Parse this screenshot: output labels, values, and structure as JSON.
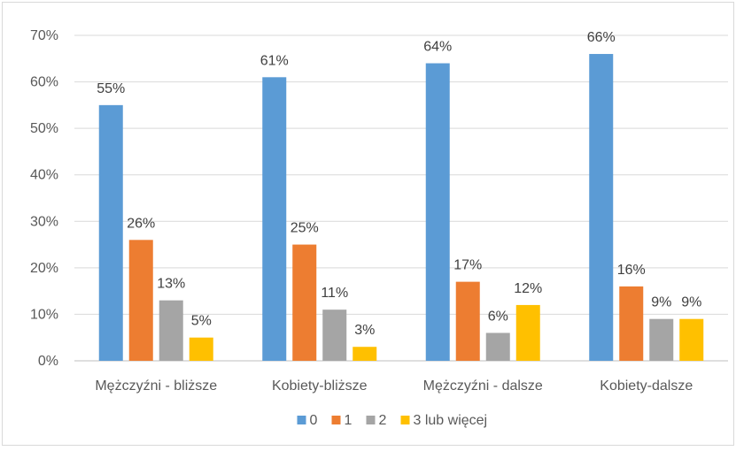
{
  "chart_data": {
    "type": "bar",
    "categories": [
      "Mężczyźni - bliższe",
      "Kobiety-bliższe",
      "Mężczyźni - dalsze",
      "Kobiety-dalsze"
    ],
    "series": [
      {
        "name": "0",
        "values": [
          55,
          61,
          64,
          66
        ],
        "labels": [
          "55%",
          "61%",
          "64%",
          "66%"
        ],
        "color": "#5b9bd5"
      },
      {
        "name": "1",
        "values": [
          26,
          25,
          17,
          16
        ],
        "labels": [
          "26%",
          "25%",
          "17%",
          "16%"
        ],
        "color": "#ed7d31"
      },
      {
        "name": "2",
        "values": [
          13,
          11,
          6,
          9
        ],
        "labels": [
          "13%",
          "11%",
          "6%",
          "9%"
        ],
        "color": "#a5a5a5"
      },
      {
        "name": "3 lub więcej",
        "values": [
          5,
          3,
          12,
          9
        ],
        "labels": [
          "5%",
          "3%",
          "12%",
          "9%"
        ],
        "color": "#ffc000"
      }
    ],
    "y_ticks": [
      "0%",
      "10%",
      "20%",
      "30%",
      "40%",
      "50%",
      "60%",
      "70%"
    ],
    "ylim": [
      0,
      70
    ],
    "grid": true,
    "legend_position": "bottom",
    "title": "",
    "xlabel": "",
    "ylabel": ""
  }
}
